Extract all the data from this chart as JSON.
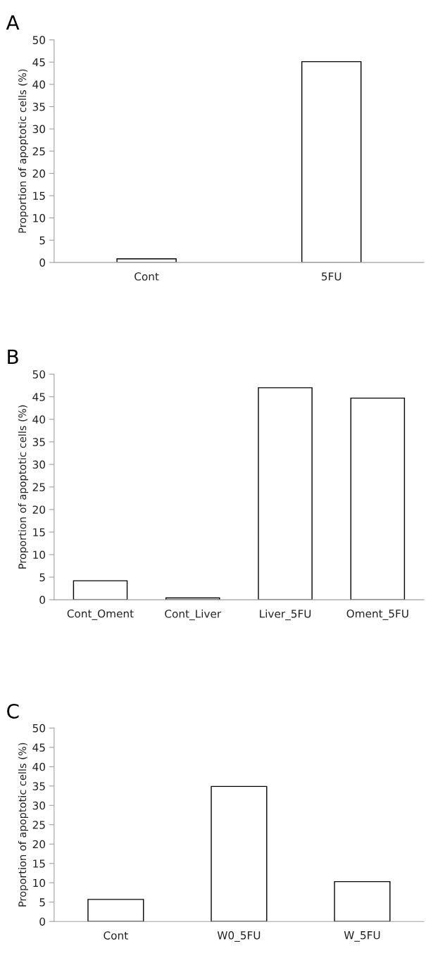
{
  "chart_data": [
    {
      "type": "bar",
      "title": "A",
      "ylabel": "Proportion of apoptotic cells (%)",
      "categories": [
        "Cont",
        "5FU"
      ],
      "values": [
        0.8,
        45.1
      ],
      "color": "#ffffff",
      "ylim": [
        0,
        50
      ],
      "yticks": [
        0,
        5,
        10,
        15,
        20,
        25,
        30,
        35,
        40,
        45,
        50
      ],
      "grid": false
    },
    {
      "type": "bar",
      "title": "B",
      "ylabel": "Proportion of apoptotic cells (%)",
      "categories": [
        "Cont_Oment",
        "Cont_Liver",
        "Liver_5FU",
        "Oment_5FU"
      ],
      "values": [
        4.2,
        0.4,
        47.0,
        44.7
      ],
      "color": "#ffffff",
      "ylim": [
        0,
        50
      ],
      "yticks": [
        0,
        5,
        10,
        15,
        20,
        25,
        30,
        35,
        40,
        45,
        50
      ],
      "grid": false
    },
    {
      "type": "bar",
      "title": "C",
      "ylabel": "Proportion of apoptotic cells (%)",
      "categories": [
        "Cont",
        "W0_5FU",
        "W_5FU"
      ],
      "values": [
        5.7,
        34.9,
        10.3
      ],
      "color": "#ffffff",
      "ylim": [
        0,
        50
      ],
      "yticks": [
        0,
        5,
        10,
        15,
        20,
        25,
        30,
        35,
        40,
        45,
        50
      ],
      "grid": false
    }
  ]
}
